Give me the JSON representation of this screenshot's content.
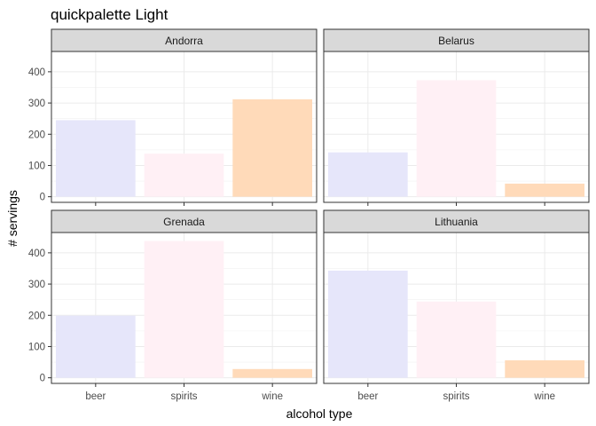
{
  "chart_data": {
    "type": "bar",
    "title": "quickpalette Light",
    "xlabel": "alcohol type",
    "ylabel": "# servings",
    "categories": [
      "beer",
      "spirits",
      "wine"
    ],
    "yticks": [
      0,
      100,
      200,
      300,
      400
    ],
    "ylim": [
      -18,
      465
    ],
    "grid": true,
    "colors": {
      "beer": "#E6E6FA",
      "spirits": "#FFF0F5",
      "wine": "#FFDAB9"
    },
    "panels": [
      {
        "name": "Andorra",
        "values": [
          245,
          138,
          312
        ]
      },
      {
        "name": "Belarus",
        "values": [
          142,
          373,
          42
        ]
      },
      {
        "name": "Grenada",
        "values": [
          199,
          438,
          28
        ]
      },
      {
        "name": "Lithuania",
        "values": [
          343,
          244,
          56
        ]
      }
    ]
  }
}
